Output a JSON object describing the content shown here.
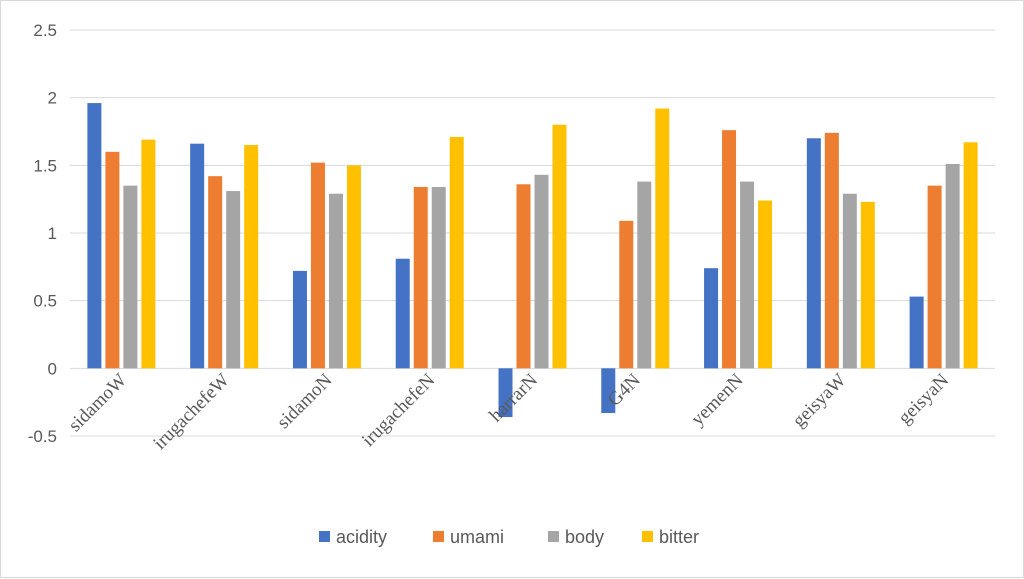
{
  "chart_data": {
    "type": "bar",
    "title": "",
    "xlabel": "",
    "ylabel": "",
    "ylim": [
      -0.5,
      2.5
    ],
    "yticks": [
      "-0.5",
      "0",
      "0.5",
      "1",
      "1.5",
      "2",
      "2.5"
    ],
    "grid": true,
    "legend_position": "bottom",
    "categories": [
      "sidamoW",
      "irugachefeW",
      "sidamoN",
      "irugachefeN",
      "harrarN",
      "G4N",
      "yemenN",
      "geisyaW",
      "geisyaN"
    ],
    "series": [
      {
        "name": "acidity",
        "color": "#4472c4",
        "values": [
          1.96,
          1.66,
          0.72,
          0.81,
          -0.36,
          -0.33,
          0.74,
          1.7,
          0.53
        ]
      },
      {
        "name": "umami",
        "color": "#ed7d31",
        "values": [
          1.6,
          1.42,
          1.52,
          1.34,
          1.36,
          1.09,
          1.76,
          1.74,
          1.35
        ]
      },
      {
        "name": "body",
        "color": "#a5a5a5",
        "values": [
          1.35,
          1.31,
          1.29,
          1.34,
          1.43,
          1.38,
          1.38,
          1.29,
          1.51
        ]
      },
      {
        "name": "bitter",
        "color": "#ffc000",
        "values": [
          1.69,
          1.65,
          1.5,
          1.71,
          1.8,
          1.92,
          1.24,
          1.23,
          1.67
        ]
      }
    ]
  }
}
